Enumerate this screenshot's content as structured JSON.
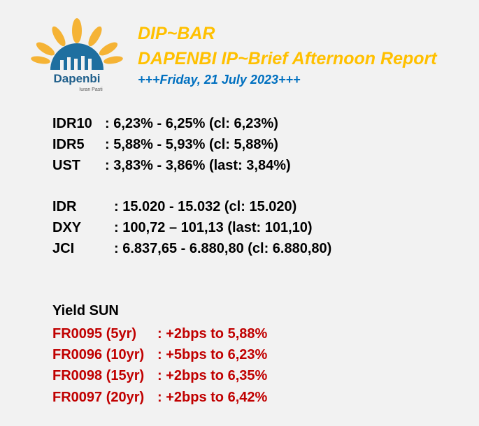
{
  "header": {
    "title": "DIP~BAR",
    "subtitle": "DAPENBI IP~Brief Afternoon Report",
    "date": "+++Friday, 21 July 2023+++",
    "logo_text": "Dapenbi",
    "logo_tagline": "Iuran Pasti"
  },
  "yields": [
    {
      "label": "IDR10",
      "value": ": 6,23% - 6,25% (cl: 6,23%)"
    },
    {
      "label": "IDR5",
      "value": ": 5,88% - 5,93% (cl: 5,88%)"
    },
    {
      "label": "UST",
      "value": ": 3,83% - 3,86% (last: 3,84%)"
    }
  ],
  "markets": [
    {
      "label": "IDR",
      "value": ": 15.020 - 15.032 (cl: 15.020)"
    },
    {
      "label": "DXY",
      "value": ": 100,72 – 101,13 (last: 101,10)"
    },
    {
      "label": "JCI",
      "value": ": 6.837,65 - 6.880,80 (cl: 6.880,80)"
    }
  ],
  "sun": {
    "heading": "Yield SUN",
    "items": [
      {
        "label": "FR0095 (5yr)",
        "value": ": +2bps to 5,88%"
      },
      {
        "label": "FR0096 (10yr)",
        "value": ": +5bps to 6,23%"
      },
      {
        "label": "FR0098 (15yr)",
        "value": ": +2bps to 6,35%"
      },
      {
        "label": "FR0097 (20yr)",
        "value": ": +2bps to 6,42%"
      }
    ]
  },
  "colors": {
    "title": "#ffc000",
    "date": "#0070c0",
    "sun": "#c00000",
    "background": "#f2f2f2"
  }
}
